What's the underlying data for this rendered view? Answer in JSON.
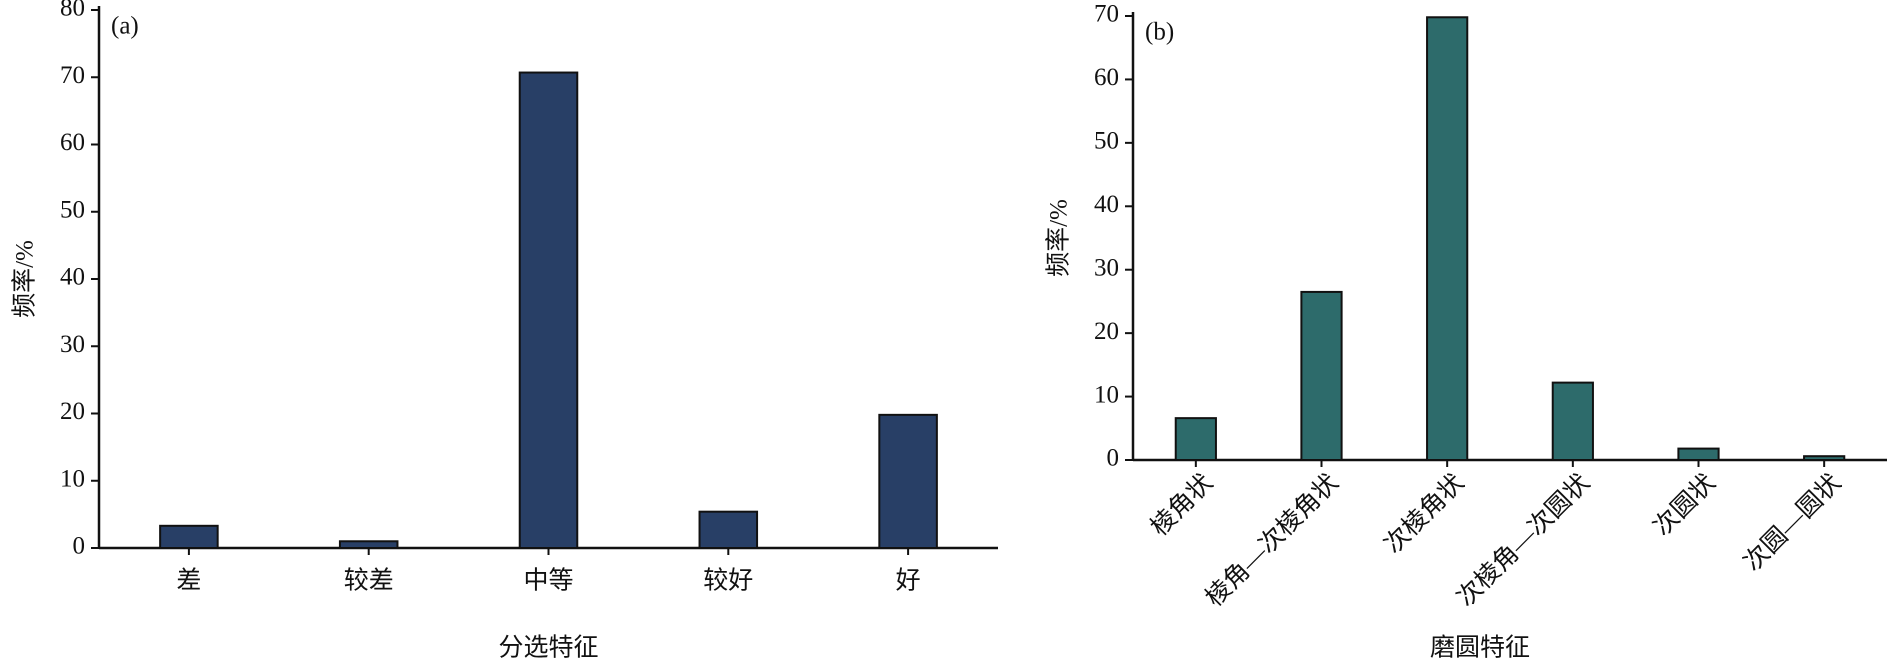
{
  "chart_data": [
    {
      "type": "bar",
      "annotation": "(a)",
      "x_label": "分选特征",
      "y_label": "频率/%",
      "categories": [
        "差",
        "较差",
        "中等",
        "较好",
        "好"
      ],
      "values": [
        3.3,
        1.0,
        70.7,
        5.4,
        19.8
      ],
      "color": "#283f66",
      "ylim": [
        0,
        80
      ],
      "yticks": [
        0,
        10,
        20,
        30,
        40,
        50,
        60,
        70,
        80
      ],
      "rotate_labels": false
    },
    {
      "type": "bar",
      "annotation": "(b)",
      "x_label": "磨圆特征",
      "y_label": "频率/%",
      "categories": [
        "棱角状",
        "棱角—次棱角状",
        "次棱角状",
        "次棱角—次圆状",
        "次圆状",
        "次圆—圆状"
      ],
      "values": [
        6.6,
        26.5,
        69.8,
        12.2,
        1.8,
        0.6
      ],
      "color": "#2d6b6b",
      "ylim": [
        0,
        70
      ],
      "yticks": [
        0,
        10,
        20,
        30,
        40,
        50,
        60,
        70
      ],
      "rotate_labels": true
    }
  ]
}
